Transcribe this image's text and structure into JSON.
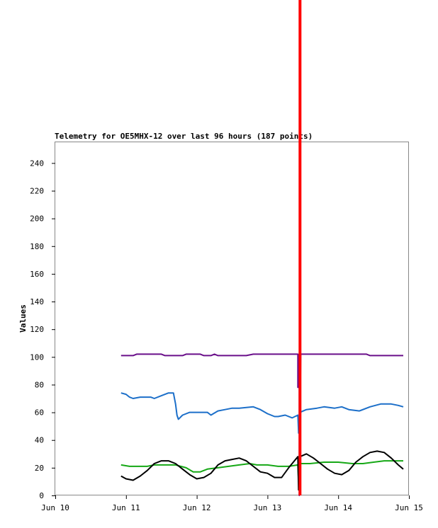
{
  "chart_data": {
    "type": "line",
    "title": "Telemetry for OE5MHX-12 over last 96 hours (187 points)",
    "ylabel": "Values",
    "xlabel": "",
    "ylim": [
      0,
      255
    ],
    "xlim": [
      0,
      5
    ],
    "x_ticks": [
      {
        "value": 0,
        "label": "Jun 10"
      },
      {
        "value": 1,
        "label": "Jun 11"
      },
      {
        "value": 2,
        "label": "Jun 12"
      },
      {
        "value": 3,
        "label": "Jun 13"
      },
      {
        "value": 4,
        "label": "Jun 14"
      },
      {
        "value": 5,
        "label": "Jun 15"
      }
    ],
    "y_ticks": [
      0,
      20,
      40,
      60,
      80,
      100,
      120,
      140,
      160,
      180,
      200,
      220,
      240
    ],
    "grid": false,
    "series": [
      {
        "color": "#6a0f8a",
        "points": [
          [
            0.93,
            101
          ],
          [
            1.1,
            101
          ],
          [
            1.15,
            102
          ],
          [
            1.5,
            102
          ],
          [
            1.55,
            101
          ],
          [
            1.8,
            101
          ],
          [
            1.85,
            102
          ],
          [
            2.05,
            102
          ],
          [
            2.1,
            101
          ],
          [
            2.2,
            101
          ],
          [
            2.25,
            102
          ],
          [
            2.3,
            101
          ],
          [
            2.7,
            101
          ],
          [
            2.8,
            102
          ],
          [
            3.43,
            102
          ],
          [
            3.43,
            78
          ],
          [
            3.45,
            102
          ],
          [
            3.45,
            0
          ],
          [
            3.47,
            102
          ],
          [
            4.4,
            102
          ],
          [
            4.45,
            101
          ],
          [
            4.92,
            101
          ]
        ]
      },
      {
        "color": "#1c6fc9",
        "points": [
          [
            0.93,
            74
          ],
          [
            1.0,
            73
          ],
          [
            1.05,
            71
          ],
          [
            1.1,
            70
          ],
          [
            1.2,
            71
          ],
          [
            1.35,
            71
          ],
          [
            1.4,
            70
          ],
          [
            1.5,
            72
          ],
          [
            1.6,
            74
          ],
          [
            1.67,
            74
          ],
          [
            1.7,
            66
          ],
          [
            1.72,
            58
          ],
          [
            1.74,
            55
          ],
          [
            1.8,
            58
          ],
          [
            1.9,
            60
          ],
          [
            2.0,
            60
          ],
          [
            2.1,
            60
          ],
          [
            2.15,
            60
          ],
          [
            2.2,
            58
          ],
          [
            2.3,
            61
          ],
          [
            2.4,
            62
          ],
          [
            2.5,
            63
          ],
          [
            2.6,
            63
          ],
          [
            2.8,
            64
          ],
          [
            2.9,
            62
          ],
          [
            3.0,
            59
          ],
          [
            3.1,
            57
          ],
          [
            3.15,
            57
          ],
          [
            3.25,
            58
          ],
          [
            3.35,
            56
          ],
          [
            3.43,
            58
          ],
          [
            3.44,
            45
          ],
          [
            3.46,
            60
          ],
          [
            3.55,
            62
          ],
          [
            3.7,
            63
          ],
          [
            3.8,
            64
          ],
          [
            3.95,
            63
          ],
          [
            4.05,
            64
          ],
          [
            4.15,
            62
          ],
          [
            4.3,
            61
          ],
          [
            4.45,
            64
          ],
          [
            4.6,
            66
          ],
          [
            4.75,
            66
          ],
          [
            4.85,
            65
          ],
          [
            4.92,
            64
          ]
        ]
      },
      {
        "color": "#16a816",
        "points": [
          [
            0.93,
            22
          ],
          [
            1.05,
            21
          ],
          [
            1.2,
            21
          ],
          [
            1.3,
            21
          ],
          [
            1.4,
            22
          ],
          [
            1.55,
            22
          ],
          [
            1.7,
            22
          ],
          [
            1.85,
            20
          ],
          [
            1.95,
            17
          ],
          [
            2.05,
            17
          ],
          [
            2.15,
            19
          ],
          [
            2.3,
            20
          ],
          [
            2.45,
            21
          ],
          [
            2.6,
            22
          ],
          [
            2.75,
            23
          ],
          [
            2.85,
            22
          ],
          [
            3.0,
            22
          ],
          [
            3.15,
            21
          ],
          [
            3.3,
            21
          ],
          [
            3.43,
            22
          ],
          [
            3.44,
            10
          ],
          [
            3.46,
            23
          ],
          [
            3.6,
            23
          ],
          [
            3.8,
            24
          ],
          [
            4.0,
            24
          ],
          [
            4.2,
            23
          ],
          [
            4.35,
            23
          ],
          [
            4.5,
            24
          ],
          [
            4.65,
            25
          ],
          [
            4.8,
            25
          ],
          [
            4.92,
            25
          ]
        ]
      },
      {
        "color": "#000000",
        "points": [
          [
            0.93,
            14
          ],
          [
            1.0,
            12
          ],
          [
            1.1,
            11
          ],
          [
            1.2,
            14
          ],
          [
            1.3,
            18
          ],
          [
            1.4,
            23
          ],
          [
            1.5,
            25
          ],
          [
            1.6,
            25
          ],
          [
            1.7,
            23
          ],
          [
            1.8,
            19
          ],
          [
            1.9,
            15
          ],
          [
            2.0,
            12
          ],
          [
            2.1,
            13
          ],
          [
            2.2,
            16
          ],
          [
            2.3,
            22
          ],
          [
            2.4,
            25
          ],
          [
            2.5,
            26
          ],
          [
            2.6,
            27
          ],
          [
            2.7,
            25
          ],
          [
            2.8,
            21
          ],
          [
            2.9,
            17
          ],
          [
            3.0,
            16
          ],
          [
            3.1,
            13
          ],
          [
            3.2,
            13
          ],
          [
            3.3,
            20
          ],
          [
            3.43,
            28
          ],
          [
            3.44,
            4
          ],
          [
            3.46,
            28
          ],
          [
            3.55,
            30
          ],
          [
            3.65,
            27
          ],
          [
            3.75,
            23
          ],
          [
            3.85,
            19
          ],
          [
            3.95,
            16
          ],
          [
            4.05,
            15
          ],
          [
            4.15,
            18
          ],
          [
            4.25,
            24
          ],
          [
            4.35,
            28
          ],
          [
            4.45,
            31
          ],
          [
            4.55,
            32
          ],
          [
            4.65,
            31
          ],
          [
            4.75,
            27
          ],
          [
            4.85,
            22
          ],
          [
            4.92,
            19
          ]
        ]
      },
      {
        "color": "#ff0000",
        "points": [
          [
            3.46,
            0
          ],
          [
            3.46,
            255
          ]
        ]
      }
    ]
  }
}
